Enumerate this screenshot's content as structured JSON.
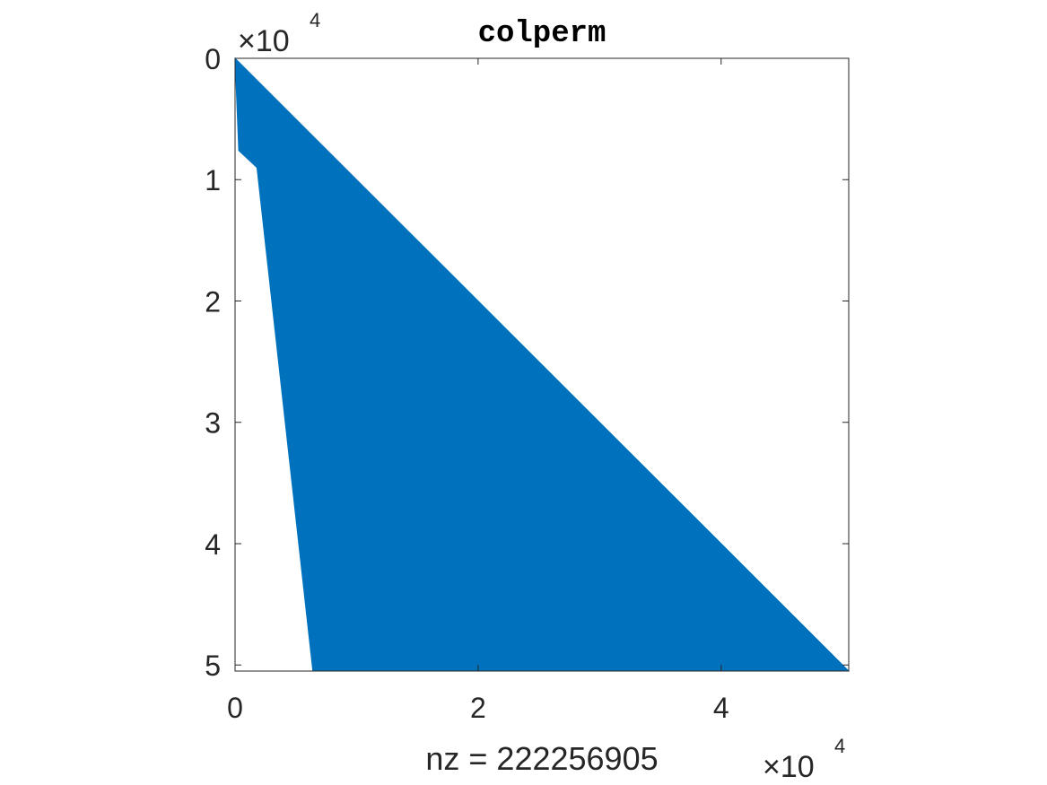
{
  "chart_data": {
    "type": "spy",
    "title": "colperm",
    "xlabel": "nz = 222256905",
    "ylabel": "",
    "x_ticks": [
      0,
      20000,
      40000
    ],
    "y_ticks": [
      0,
      10000,
      20000,
      30000,
      40000,
      50000
    ],
    "x_tick_labels": [
      "0",
      "2",
      "4"
    ],
    "y_tick_labels": [
      "0",
      "1",
      "2",
      "3",
      "4",
      "5"
    ],
    "x_exponent_label": "×10",
    "x_exponent_power": "4",
    "y_exponent_label": "×10",
    "y_exponent_power": "4",
    "xlim": [
      0,
      50500
    ],
    "ylim": [
      0,
      50500
    ],
    "y_reversed": true,
    "fill_color": "#0072BD",
    "nonzero_region_outline": [
      [
        0,
        0
      ],
      [
        50500,
        50500
      ],
      [
        6400,
        50500
      ],
      [
        1800,
        9000
      ],
      [
        300,
        7600
      ],
      [
        0,
        0
      ]
    ],
    "nz": 222256905
  }
}
